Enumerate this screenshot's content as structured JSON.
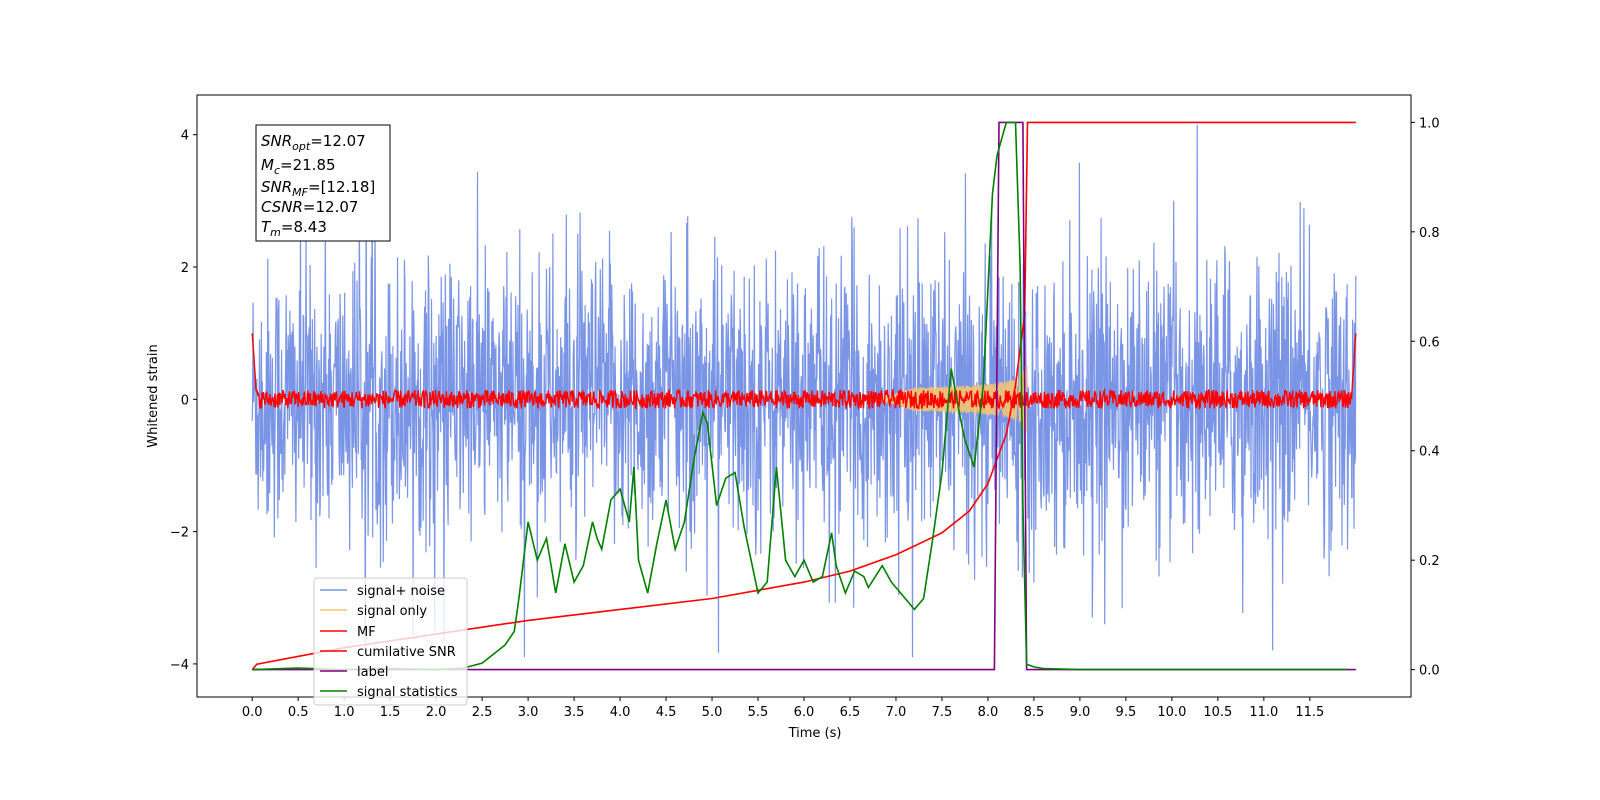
{
  "chart_data": {
    "type": "line",
    "xlabel": "Time (s)",
    "ylabel_left": "Whitened strain",
    "xlim": [
      -0.6,
      12.6
    ],
    "ylim_left": [
      -4.5,
      4.6
    ],
    "ylim_right": [
      -0.05,
      1.05
    ],
    "x_ticks": [
      "0.0",
      "0.5",
      "1.0",
      "1.5",
      "2.0",
      "2.5",
      "3.0",
      "3.5",
      "4.0",
      "4.5",
      "5.0",
      "5.5",
      "6.0",
      "6.5",
      "7.0",
      "7.5",
      "8.0",
      "8.5",
      "9.0",
      "9.5",
      "10.0",
      "10.5",
      "11.0",
      "11.5"
    ],
    "y_ticks_left": [
      "−4",
      "−2",
      "0",
      "2",
      "4"
    ],
    "y_ticks_right": [
      "0.0",
      "0.2",
      "0.4",
      "0.6",
      "0.8",
      "1.0"
    ],
    "grid": false,
    "legend_placement": "lower-left",
    "info_box": {
      "snr_opt": {
        "main": "SNR",
        "sub": "opt",
        "value": "=12.07"
      },
      "mc": {
        "main": "M",
        "sub": "c",
        "value": "=21.85"
      },
      "snr_mf": {
        "main": "SNR",
        "sub": "MF",
        "value": "=[12.18]"
      },
      "csnr": {
        "main": "CSNR",
        "value": "=12.07"
      },
      "tm": {
        "main": "T",
        "sub": "m",
        "value": "=8.43"
      }
    },
    "series": [
      {
        "name": "signal+ noise",
        "color": "#7b95e6",
        "axis": "left",
        "x_range": [
          0.0,
          12.0
        ],
        "approx_bounds": [
          -3.9,
          4.15
        ],
        "note_values": "dense noise band centred at 0"
      },
      {
        "name": "signal only",
        "color": "#f4c471",
        "axis": "left",
        "chirp": {
          "start": 6.8,
          "end": 8.42,
          "max_amplitude": 0.5
        }
      },
      {
        "name": "MF",
        "color": "#ff0000",
        "axis": "left",
        "x_range": [
          0.0,
          12.0
        ],
        "edge_value": 1.0,
        "noise_amplitude": 0.2
      },
      {
        "name": "cumilative SNR",
        "color": "#ff0000",
        "axis": "right",
        "x": [
          0.0,
          0.05,
          1.0,
          2.0,
          3.0,
          4.0,
          5.0,
          6.0,
          6.5,
          7.0,
          7.5,
          7.8,
          8.0,
          8.2,
          8.3,
          8.4,
          8.43,
          12.0
        ],
        "y": [
          0.0,
          0.01,
          0.04,
          0.065,
          0.09,
          0.11,
          0.13,
          0.16,
          0.18,
          0.21,
          0.25,
          0.29,
          0.34,
          0.43,
          0.52,
          0.65,
          1.0,
          1.0
        ]
      },
      {
        "name": "label",
        "color": "#800080",
        "axis": "right",
        "x": [
          0.0,
          8.07,
          8.12,
          8.38,
          8.42,
          12.0
        ],
        "y": [
          0.0,
          0.0,
          1.0,
          1.0,
          0.0,
          0.0
        ]
      },
      {
        "name": "signal statistics",
        "color": "#008000",
        "axis": "right",
        "x": [
          0.0,
          0.5,
          1.0,
          1.5,
          2.0,
          2.3,
          2.5,
          2.75,
          2.85,
          2.9,
          2.95,
          3.0,
          3.1,
          3.2,
          3.3,
          3.4,
          3.5,
          3.6,
          3.7,
          3.75,
          3.8,
          3.9,
          4.0,
          4.1,
          4.15,
          4.2,
          4.3,
          4.4,
          4.5,
          4.6,
          4.7,
          4.8,
          4.9,
          4.95,
          5.05,
          5.15,
          5.25,
          5.35,
          5.5,
          5.6,
          5.7,
          5.8,
          5.9,
          6.0,
          6.1,
          6.2,
          6.3,
          6.35,
          6.45,
          6.55,
          6.65,
          6.7,
          6.85,
          6.95,
          7.1,
          7.2,
          7.3,
          7.4,
          7.5,
          7.6,
          7.7,
          7.75,
          7.85,
          7.95,
          8.05,
          8.1,
          8.2,
          8.3,
          8.35,
          8.38,
          8.42,
          8.5,
          8.6,
          8.8,
          9.0,
          11.0,
          11.9
        ],
        "y": [
          0.0,
          0.003,
          0.0,
          0.002,
          0.0,
          0.003,
          0.012,
          0.045,
          0.07,
          0.13,
          0.2,
          0.27,
          0.2,
          0.24,
          0.14,
          0.23,
          0.16,
          0.19,
          0.27,
          0.24,
          0.22,
          0.31,
          0.33,
          0.27,
          0.37,
          0.2,
          0.14,
          0.23,
          0.31,
          0.22,
          0.27,
          0.38,
          0.47,
          0.45,
          0.3,
          0.35,
          0.36,
          0.26,
          0.14,
          0.16,
          0.37,
          0.2,
          0.17,
          0.2,
          0.16,
          0.17,
          0.25,
          0.19,
          0.14,
          0.18,
          0.17,
          0.15,
          0.19,
          0.16,
          0.13,
          0.11,
          0.13,
          0.24,
          0.36,
          0.55,
          0.46,
          0.42,
          0.37,
          0.52,
          0.87,
          0.94,
          1.0,
          1.0,
          0.74,
          0.3,
          0.01,
          0.005,
          0.002,
          0.001,
          0.0,
          0.0,
          0.0
        ]
      }
    ]
  },
  "legend": {
    "items": [
      {
        "label": "signal+ noise",
        "color": "#7b95e6"
      },
      {
        "label": "signal only",
        "color": "#f4c471"
      },
      {
        "label": "MF",
        "color": "#ff0000"
      },
      {
        "label": "cumilative SNR",
        "color": "#ff0000"
      },
      {
        "label": "label",
        "color": "#800080"
      },
      {
        "label": "signal statistics",
        "color": "#008000"
      }
    ]
  }
}
